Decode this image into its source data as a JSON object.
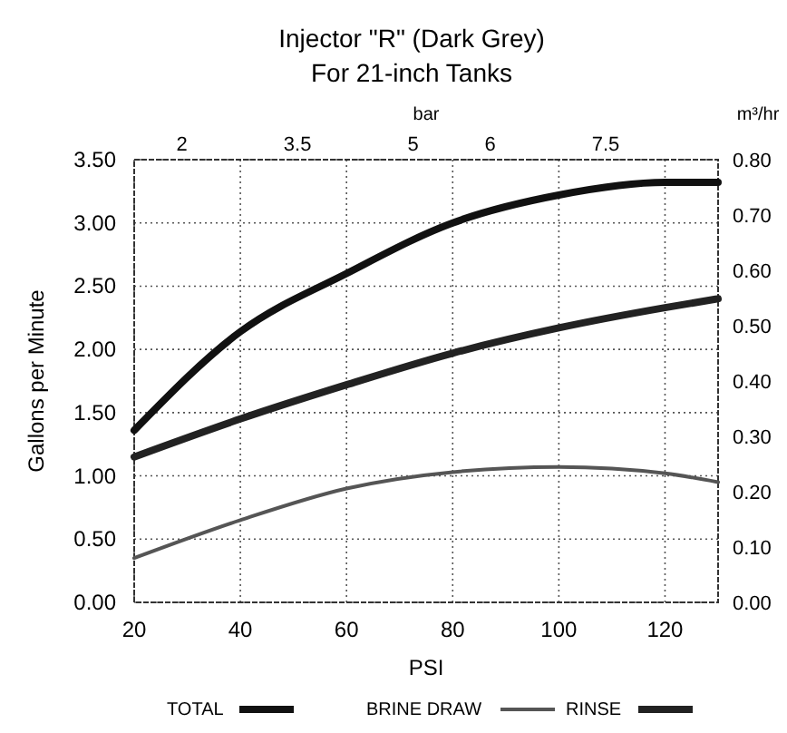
{
  "chart_data": {
    "type": "line",
    "title": "Injector \"R\" (Dark Grey)",
    "subtitle": "For 21-inch Tanks",
    "xlabel": "PSI",
    "ylabel": "Gallons per Minute",
    "x2label": "bar",
    "y2label": "m³/hr",
    "x": [
      20,
      40,
      60,
      80,
      100,
      120,
      130
    ],
    "series": [
      {
        "name": "TOTAL",
        "color": "#111111",
        "values": [
          1.36,
          2.14,
          2.6,
          3.0,
          3.22,
          3.32,
          3.32
        ]
      },
      {
        "name": "BRINE DRAW",
        "color": "#555555",
        "values": [
          0.35,
          0.65,
          0.9,
          1.03,
          1.07,
          1.02,
          0.95
        ]
      },
      {
        "name": "RINSE",
        "color": "#222222",
        "values": [
          1.15,
          1.45,
          1.72,
          1.97,
          2.17,
          2.33,
          2.4
        ]
      }
    ],
    "xlim": [
      20,
      130
    ],
    "xticks": [
      20,
      40,
      60,
      80,
      100,
      120
    ],
    "ylim": [
      0,
      3.5
    ],
    "yticks": [
      {
        "value": 0,
        "label": "0.00"
      },
      {
        "value": 0.5,
        "label": "0.50"
      },
      {
        "value": 1,
        "label": "1.00"
      },
      {
        "value": 1.5,
        "label": "1.50"
      },
      {
        "value": 2,
        "label": "2.00"
      },
      {
        "value": 2.5,
        "label": "2.50"
      },
      {
        "value": 3,
        "label": "3.00"
      },
      {
        "value": 3.5,
        "label": "3.50"
      }
    ],
    "x2lim": [
      1.38,
      8.96
    ],
    "x2ticks": [
      2,
      3.5,
      5,
      6,
      7.5
    ],
    "y2lim": [
      0,
      0.8
    ],
    "y2ticks": [
      {
        "value": 0,
        "label": "0.00"
      },
      {
        "value": 0.1,
        "label": "0.10"
      },
      {
        "value": 0.2,
        "label": "0.20"
      },
      {
        "value": 0.3,
        "label": "0.30"
      },
      {
        "value": 0.4,
        "label": "0.40"
      },
      {
        "value": 0.5,
        "label": "0.50"
      },
      {
        "value": 0.6,
        "label": "0.60"
      },
      {
        "value": 0.7,
        "label": "0.70"
      },
      {
        "value": 0.8,
        "label": "0.80"
      }
    ],
    "grid": true,
    "legend": "bottom",
    "marker": "none",
    "line_style": "solid"
  }
}
